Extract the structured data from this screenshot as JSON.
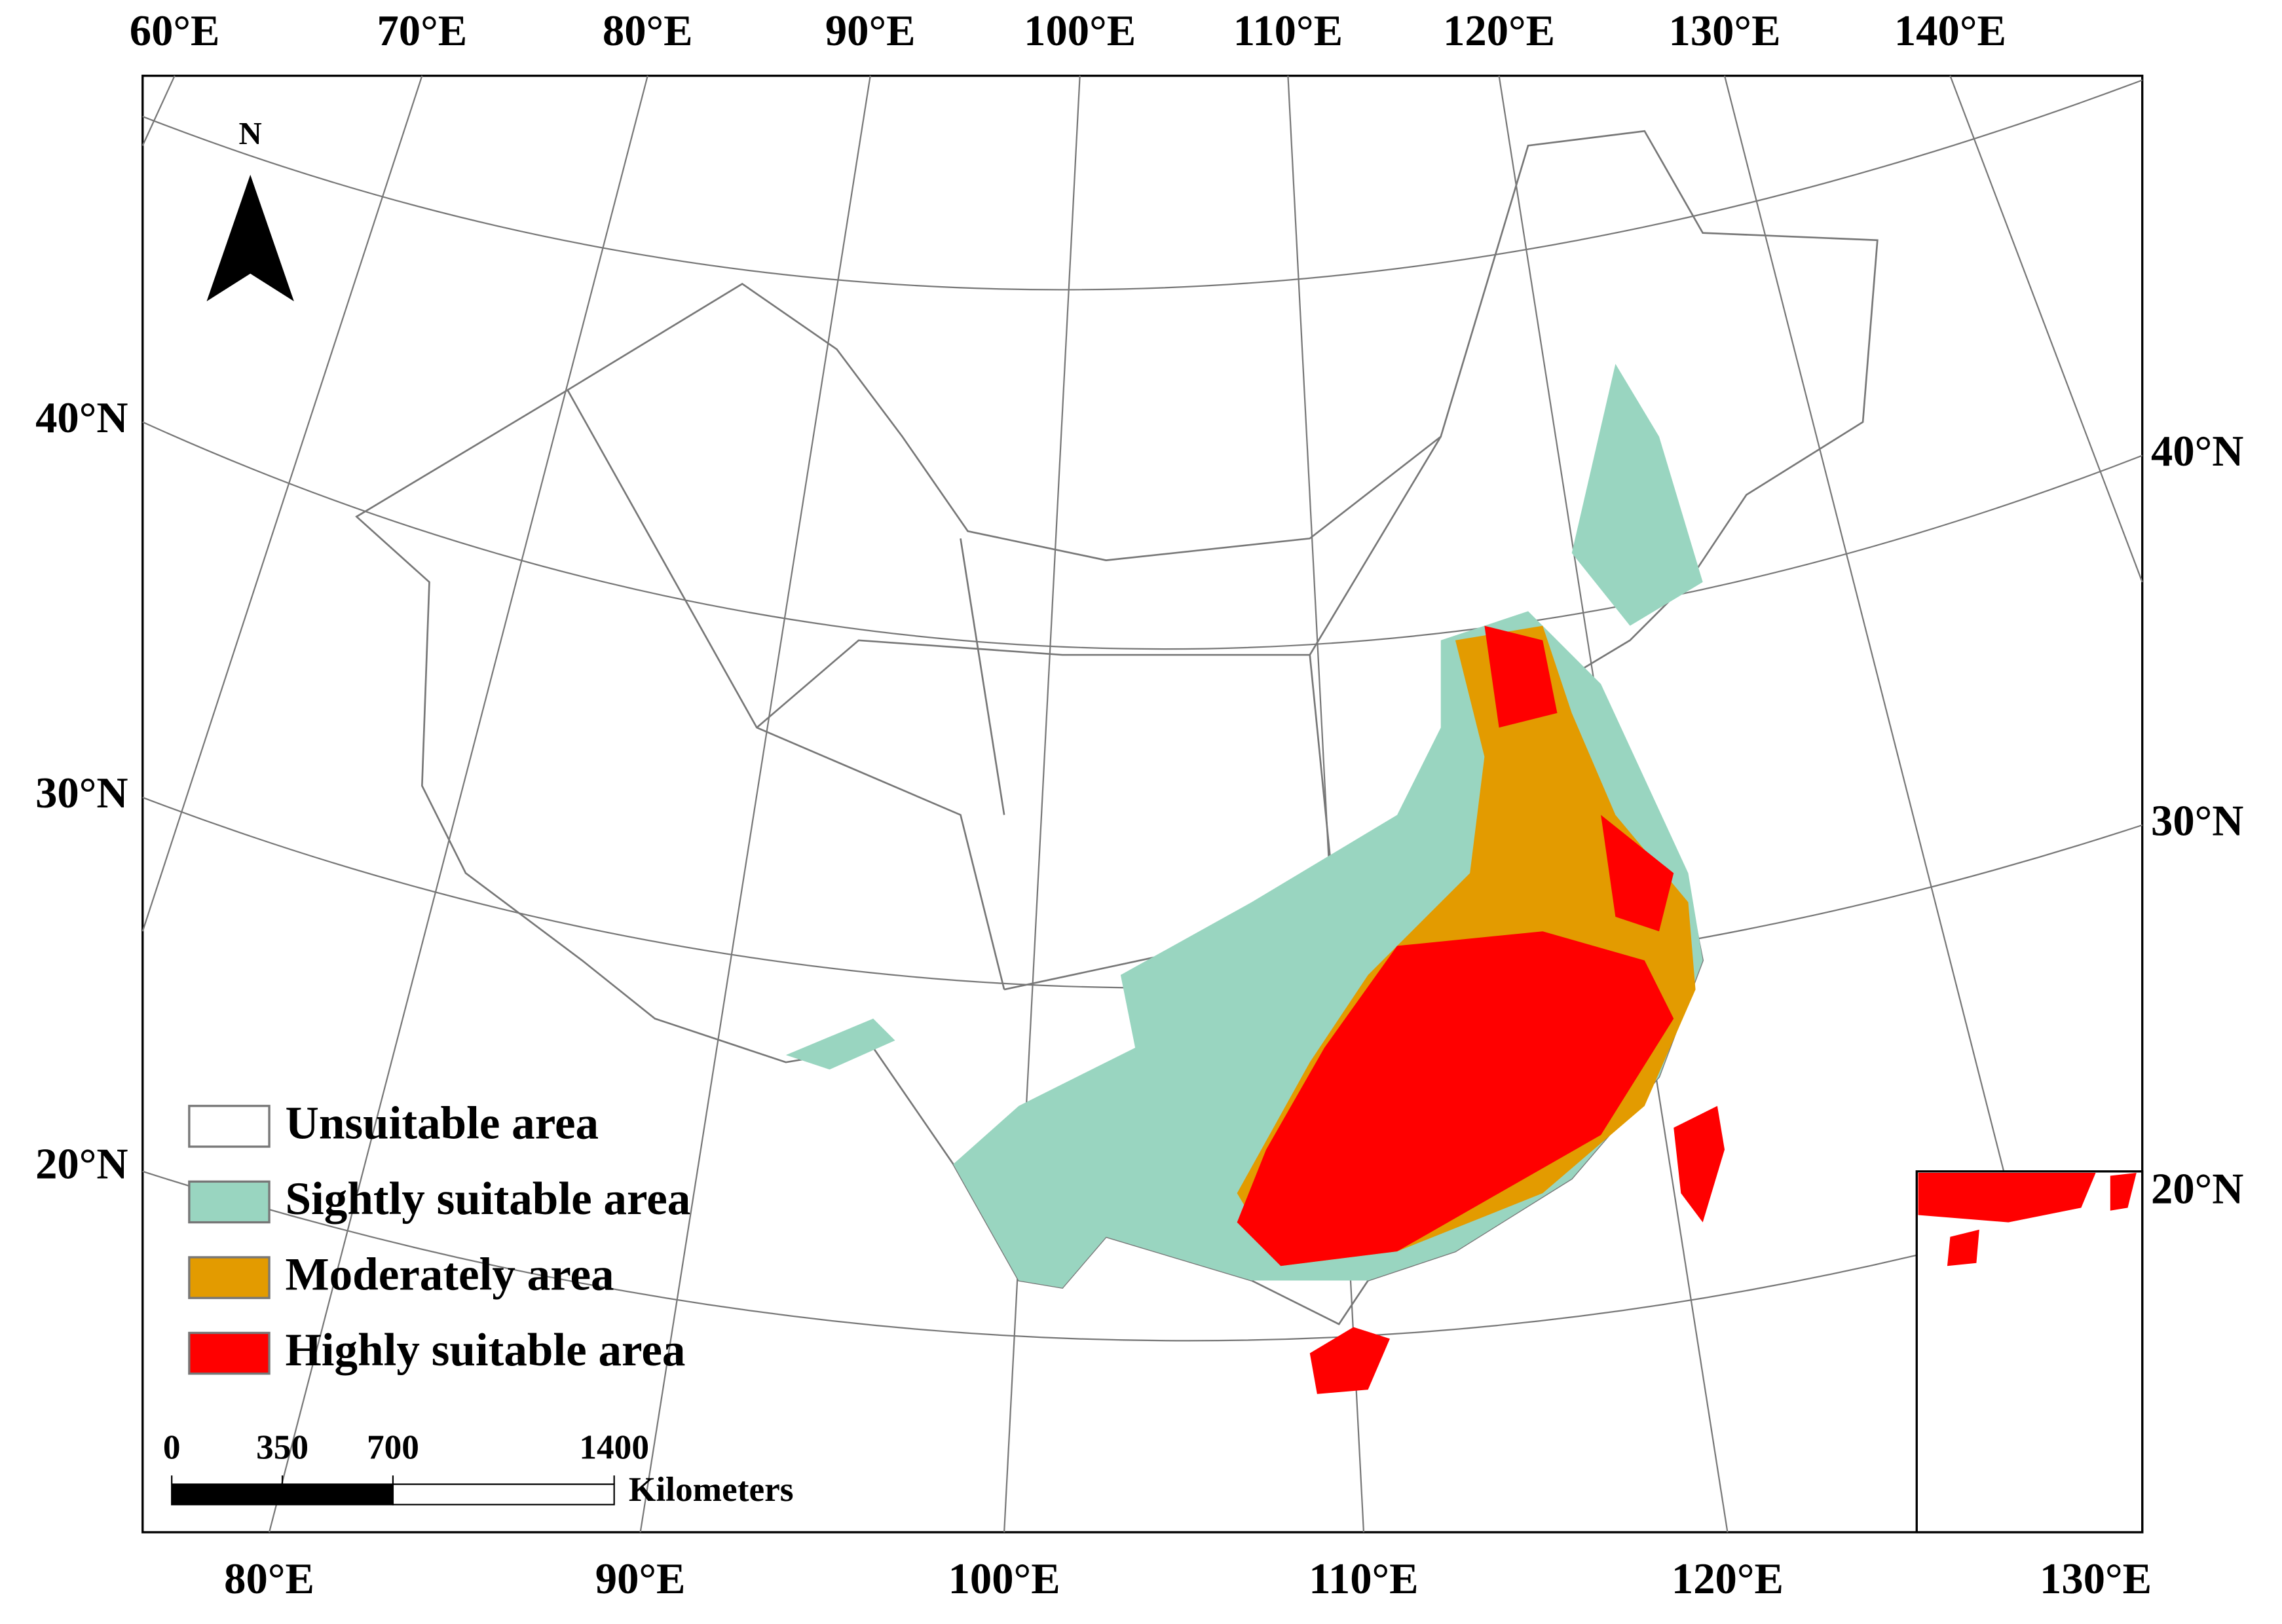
{
  "map": {
    "north": "N",
    "top_longitudes": [
      "60°E",
      "70°E",
      "80°E",
      "90°E",
      "100°E",
      "110°E",
      "120°E",
      "130°E",
      "140°E"
    ],
    "bottom_longitudes": [
      "80°E",
      "90°E",
      "100°E",
      "110°E",
      "120°E",
      "130°E"
    ],
    "left_latitudes": [
      "40°N",
      "30°N",
      "20°N"
    ],
    "right_latitudes": [
      "40°N",
      "30°N",
      "20°N"
    ],
    "legend": [
      {
        "label": "Unsuitable area",
        "color": "#ffffff"
      },
      {
        "label": "Sightly suitable area",
        "color": "#99d5c0"
      },
      {
        "label": "Moderately area",
        "color": "#e39b00"
      },
      {
        "label": "Highly suitable area",
        "color": "#ff0000"
      }
    ],
    "scale": {
      "ticks": [
        0,
        350,
        700,
        1400
      ],
      "unit": "Kilometers"
    }
  }
}
